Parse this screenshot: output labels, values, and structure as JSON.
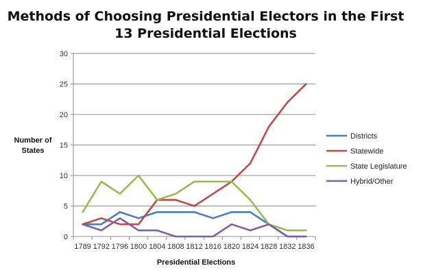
{
  "chart_data": {
    "type": "line",
    "title_line1": "Methods of Choosing Presidential Electors in the First",
    "title_line2": "13 Presidential Elections",
    "xlabel": "Presidential Elections",
    "ylabel_line1": "Number of",
    "ylabel_line2": "States",
    "categories": [
      "1789",
      "1792",
      "1796",
      "1800",
      "1804",
      "1808",
      "1812",
      "1816",
      "1820",
      "1824",
      "1828",
      "1832",
      "1836"
    ],
    "ylim": [
      0,
      30
    ],
    "yticks": [
      0,
      5,
      10,
      15,
      20,
      25,
      30
    ],
    "grid": true,
    "legend_position": "right",
    "series": [
      {
        "name": "Districts",
        "color": "#4a7ebb",
        "values": [
          2,
          2,
          4,
          3,
          4,
          4,
          4,
          3,
          4,
          4,
          2,
          0,
          0
        ]
      },
      {
        "name": "Statewide",
        "color": "#be4b48",
        "values": [
          2,
          3,
          2,
          2,
          6,
          6,
          5,
          7,
          9,
          12,
          18,
          22,
          25
        ]
      },
      {
        "name": "State Legislature",
        "color": "#98b954",
        "values": [
          4,
          9,
          7,
          10,
          6,
          7,
          9,
          9,
          9,
          6,
          2,
          1,
          1
        ]
      },
      {
        "name": "Hybrid/Other",
        "color": "#7d60a0",
        "values": [
          2,
          1,
          3,
          1,
          1,
          0,
          0,
          0,
          2,
          1,
          2,
          0,
          0
        ]
      }
    ]
  }
}
